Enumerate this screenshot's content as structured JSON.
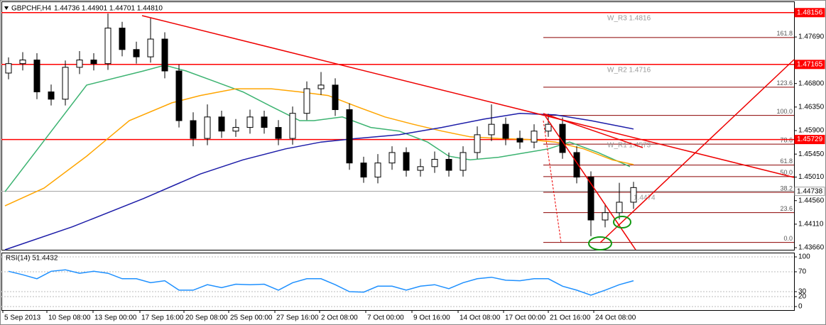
{
  "chart_data": [
    {
      "type": "candlestick",
      "title": "GBPCHF,H4",
      "subtitle": "1.44736 1.44901 1.44701 1.44810",
      "x": [
        1,
        3,
        5,
        7,
        9,
        11,
        13,
        15,
        17,
        19,
        21,
        23,
        25,
        27,
        29,
        31,
        33,
        35,
        37,
        39,
        41,
        43,
        45,
        47,
        49,
        51,
        53,
        55,
        57,
        59,
        61,
        63,
        65,
        67,
        69,
        71,
        73,
        75,
        77,
        79,
        81,
        83,
        85,
        87,
        89
      ],
      "open": [
        1.47,
        1.4718,
        1.4725,
        1.4664,
        1.465,
        1.4711,
        1.4725,
        1.4718,
        1.4786,
        1.4745,
        1.4731,
        1.4765,
        1.4704,
        1.4609,
        1.4575,
        1.4616,
        1.4589,
        1.4596,
        1.4616,
        1.4596,
        1.4575,
        1.4623,
        1.467,
        1.4677,
        1.463,
        1.4528,
        1.4501,
        1.4528,
        1.4548,
        1.4514,
        1.4521,
        1.4535,
        1.4514,
        1.4548,
        1.4582,
        1.4602,
        1.4575,
        1.4568,
        1.4589,
        1.4602,
        1.4548,
        1.4501,
        1.4419,
        1.4433,
        1.4453
      ],
      "high": [
        1.473,
        1.474,
        1.4738,
        1.4678,
        1.4724,
        1.4742,
        1.4738,
        1.4814,
        1.4798,
        1.476,
        1.4805,
        1.4778,
        1.4716,
        1.4625,
        1.464,
        1.4628,
        1.4612,
        1.463,
        1.4628,
        1.461,
        1.4636,
        1.4684,
        1.4702,
        1.469,
        1.4642,
        1.454,
        1.4545,
        1.456,
        1.4558,
        1.4536,
        1.455,
        1.4548,
        1.456,
        1.4598,
        1.464,
        1.4615,
        1.459,
        1.4602,
        1.4622,
        1.4615,
        1.456,
        1.4512,
        1.445,
        1.449,
        1.4492
      ],
      "low": [
        1.4688,
        1.4705,
        1.465,
        1.4638,
        1.4638,
        1.4698,
        1.4705,
        1.4706,
        1.4732,
        1.4718,
        1.472,
        1.469,
        1.4596,
        1.456,
        1.4562,
        1.4576,
        1.4578,
        1.4584,
        1.4584,
        1.4562,
        1.4563,
        1.461,
        1.4658,
        1.4618,
        1.4515,
        1.449,
        1.4489,
        1.4515,
        1.4502,
        1.4502,
        1.4509,
        1.4502,
        1.4502,
        1.4536,
        1.457,
        1.4562,
        1.4555,
        1.4556,
        1.4578,
        1.4536,
        1.4489,
        1.4388,
        1.4405,
        1.442,
        1.444
      ],
      "close": [
        1.4718,
        1.4725,
        1.4664,
        1.465,
        1.4711,
        1.4725,
        1.4718,
        1.4786,
        1.4745,
        1.4731,
        1.4765,
        1.4704,
        1.4609,
        1.4575,
        1.4616,
        1.4589,
        1.4596,
        1.4616,
        1.4596,
        1.4575,
        1.4623,
        1.467,
        1.4677,
        1.463,
        1.4528,
        1.4501,
        1.4528,
        1.4548,
        1.4514,
        1.4521,
        1.4535,
        1.4514,
        1.4548,
        1.4582,
        1.4602,
        1.4575,
        1.4568,
        1.4589,
        1.4602,
        1.4548,
        1.4501,
        1.4419,
        1.4433,
        1.4453,
        1.4481
      ],
      "lines": [
        {
          "color": "#3cb371",
          "x": [
            0.5,
            12,
            20,
            23,
            26,
            30,
            34,
            38,
            42,
            44,
            48,
            52,
            56,
            60,
            63,
            66,
            70,
            74,
            77,
            80,
            84,
            88.5
          ],
          "values": [
            1.4473,
            1.4677,
            1.4704,
            1.4715,
            1.4704,
            1.4684,
            1.4664,
            1.4636,
            1.4609,
            1.4609,
            1.4616,
            1.4596,
            1.4589,
            1.4568,
            1.4541,
            1.4534,
            1.4539,
            1.4548,
            1.4555,
            1.4568,
            1.4548,
            1.4521
          ]
        },
        {
          "color": "#ffa500",
          "x": [
            0.5,
            6,
            12,
            18,
            24,
            28,
            33,
            38,
            42,
            46,
            50,
            54,
            58,
            62,
            66,
            70,
            74,
            78,
            82,
            86,
            89
          ],
          "values": [
            1.4446,
            1.448,
            1.4541,
            1.4609,
            1.4643,
            1.4657,
            1.467,
            1.467,
            1.4664,
            1.4657,
            1.4636,
            1.4616,
            1.4602,
            1.4589,
            1.4578,
            1.4575,
            1.4573,
            1.4568,
            1.4555,
            1.4534,
            1.4525
          ]
        },
        {
          "color": "#1c1ca8",
          "x": [
            0.5,
            10,
            20,
            28,
            34,
            40,
            45,
            50,
            56,
            62,
            68,
            73,
            78,
            83,
            89
          ],
          "values": [
            1.4362,
            1.4406,
            1.446,
            1.4507,
            1.4534,
            1.4555,
            1.4568,
            1.4575,
            1.4582,
            1.4596,
            1.4612,
            1.4623,
            1.462,
            1.4609,
            1.4593
          ]
        }
      ],
      "levels": [
        {
          "value": 1.48156,
          "label": "1.48156",
          "color": "#ff0000",
          "label_color": "#ffffff",
          "label_background": "#ff0000"
        },
        {
          "value": 1.47165,
          "label": "1.47165",
          "color": "#ff0000",
          "label_color": "#ffffff",
          "label_background": "#ff0000"
        },
        {
          "value": 1.45729,
          "label": "1.45729",
          "color": "#ff0000",
          "label_color": "#ffffff",
          "label_background": "#ff0000"
        },
        {
          "value": 1.44738,
          "label": "1.44738",
          "color": "#a0a0a0",
          "label_color": "#000000",
          "label_background": "#ffffff"
        }
      ],
      "fib_color": "#8b0000",
      "fib": [
        {
          "value": 1.4768,
          "label": "161.8"
        },
        {
          "value": 1.4673,
          "label": "123.6"
        },
        {
          "value": 1.4619,
          "label": "100.0"
        },
        {
          "value": 1.4564,
          "label": "78.6"
        },
        {
          "value": 1.4524,
          "label": "61.8"
        },
        {
          "value": 1.4502,
          "label": "50.0"
        },
        {
          "value": 1.4472,
          "label": "38.2"
        },
        {
          "value": 1.4433,
          "label": "23.6"
        },
        {
          "value": 1.4376,
          "label": "0.0"
        }
      ],
      "annotations": [
        "W_R3 1.4816",
        "W_R2 1.4716",
        "W_R1 1.4573",
        "1.4474"
      ],
      "xlim": [
        0,
        111.6
      ],
      "ylim": [
        1.4362,
        1.4837
      ],
      "yticks": [
        {
          "value": 1.4769,
          "label": "1.47690"
        },
        {
          "value": 1.468,
          "label": "1.46800"
        },
        {
          "value": 1.4635,
          "label": "1.46350"
        },
        {
          "value": 1.459,
          "label": "1.45900"
        },
        {
          "value": 1.4545,
          "label": "1.45450"
        },
        {
          "value": 1.4501,
          "label": "1.45010"
        },
        {
          "value": 1.4456,
          "label": "1.44560"
        },
        {
          "value": 1.4411,
          "label": "1.44110"
        },
        {
          "value": 1.4366,
          "label": "1.43660"
        }
      ],
      "xticks": [
        {
          "value": 0.2,
          "label": "5 Sep 2013"
        },
        {
          "value": 6.4,
          "label": "10 Sep 08:00"
        },
        {
          "value": 12.9,
          "label": "13 Sep 00:00"
        },
        {
          "value": 19.5,
          "label": "17 Sep 16:00"
        },
        {
          "value": 25.7,
          "label": "20 Sep 08:00"
        },
        {
          "value": 32,
          "label": "25 Sep 00:00"
        },
        {
          "value": 38.5,
          "label": "27 Sep 16:00"
        },
        {
          "value": 44.8,
          "label": "2 Oct 08:00"
        },
        {
          "value": 51.3,
          "label": "7 Oct 00:00"
        },
        {
          "value": 57.8,
          "label": "9 Oct 16:00"
        },
        {
          "value": 64.3,
          "label": "14 Oct 08:00"
        },
        {
          "value": 70.7,
          "label": "17 Oct 00:00"
        },
        {
          "value": 77,
          "label": "21 Oct 16:00"
        },
        {
          "value": 83.4,
          "label": "24 Oct 08:00"
        }
      ]
    },
    {
      "type": "line",
      "title": "RSI(14) 51.4432",
      "color": "#1e90ff",
      "x": [
        1,
        3,
        5,
        7,
        9,
        11,
        13,
        15,
        17,
        19,
        21,
        23,
        25,
        27,
        29,
        31,
        33,
        35,
        37,
        39,
        41,
        43,
        45,
        47,
        49,
        51,
        53,
        55,
        57,
        59,
        61,
        63,
        65,
        67,
        69,
        71,
        73,
        75,
        77,
        79,
        81,
        83,
        85,
        87,
        89
      ],
      "values": [
        71,
        64,
        56,
        71,
        74,
        67,
        71,
        67,
        56,
        56,
        48,
        52,
        33,
        33,
        44,
        38,
        45,
        44,
        45,
        33,
        48,
        56,
        56,
        44,
        30,
        29,
        41,
        41,
        33,
        41,
        44,
        36,
        48,
        56,
        59,
        53,
        52,
        56,
        56,
        41,
        33,
        23,
        33,
        44,
        52
      ],
      "xlim": [
        0,
        111.6
      ],
      "ylim": [
        0,
        100
      ],
      "yticks": [
        0,
        20,
        30,
        70,
        100
      ],
      "grid": true
    }
  ]
}
